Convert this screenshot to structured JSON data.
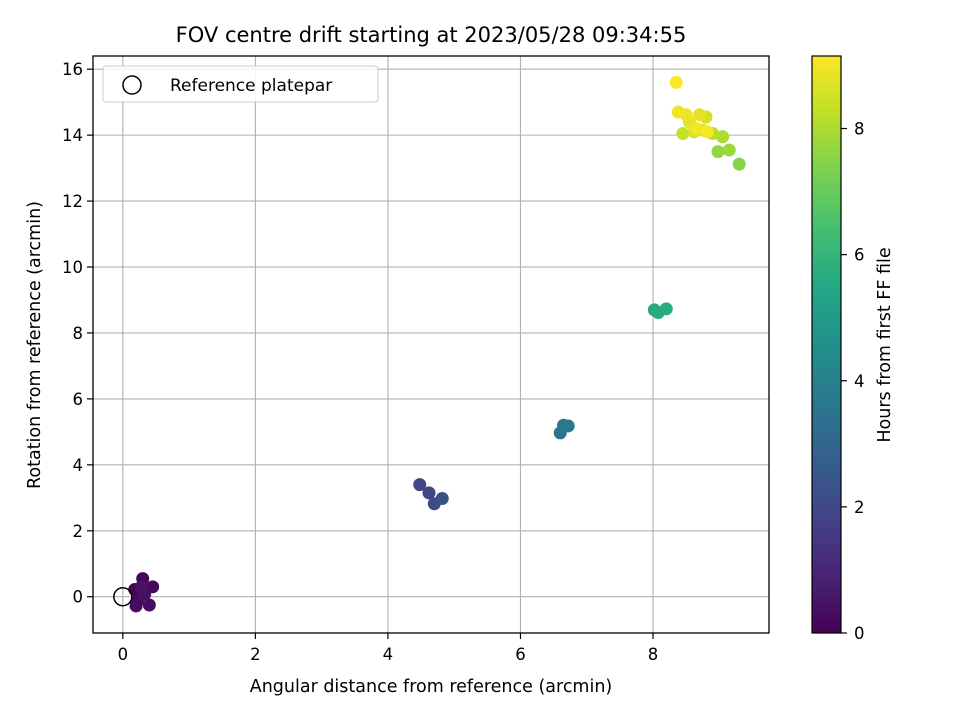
{
  "chart_data": {
    "type": "scatter",
    "title": "FOV centre drift starting at 2023/05/28 09:34:55",
    "xlabel": "Angular distance from reference (arcmin)",
    "ylabel": "Rotation from reference (arcmin)",
    "xlim": [
      -0.45,
      9.75
    ],
    "ylim": [
      -1.1,
      16.4
    ],
    "xticks": [
      0,
      2,
      4,
      6,
      8
    ],
    "yticks": [
      0,
      2,
      4,
      6,
      8,
      10,
      12,
      14,
      16
    ],
    "grid": true,
    "legend": {
      "position": "top-left",
      "entries": [
        {
          "label": "Reference platepar",
          "marker": "open-circle"
        }
      ]
    },
    "colormap": "viridis",
    "colorbar": {
      "label": "Hours from first FF file",
      "range": [
        0,
        9.15
      ],
      "ticks": [
        0,
        2,
        4,
        6,
        8
      ]
    },
    "reference_point": {
      "x": 0,
      "y": 0
    },
    "points": [
      {
        "x": 0.18,
        "y": 0.22,
        "c": 0.1
      },
      {
        "x": 0.3,
        "y": 0.55,
        "c": 0.15
      },
      {
        "x": 0.45,
        "y": 0.3,
        "c": 0.2
      },
      {
        "x": 0.22,
        "y": -0.12,
        "c": 0.25
      },
      {
        "x": 0.2,
        "y": -0.28,
        "c": 0.3
      },
      {
        "x": 0.4,
        "y": -0.25,
        "c": 0.35
      },
      {
        "x": 0.33,
        "y": 0.08,
        "c": 0.4
      },
      {
        "x": 0.28,
        "y": 0.3,
        "c": 0.45
      },
      {
        "x": 4.48,
        "y": 3.4,
        "c": 1.9
      },
      {
        "x": 4.62,
        "y": 3.15,
        "c": 2.0
      },
      {
        "x": 4.7,
        "y": 2.82,
        "c": 2.1
      },
      {
        "x": 4.82,
        "y": 2.98,
        "c": 2.2
      },
      {
        "x": 6.6,
        "y": 4.97,
        "c": 3.55
      },
      {
        "x": 6.65,
        "y": 5.2,
        "c": 3.6
      },
      {
        "x": 6.72,
        "y": 5.18,
        "c": 3.65
      },
      {
        "x": 8.02,
        "y": 8.7,
        "c": 5.55
      },
      {
        "x": 8.08,
        "y": 8.62,
        "c": 5.6
      },
      {
        "x": 8.2,
        "y": 8.73,
        "c": 5.65
      },
      {
        "x": 9.3,
        "y": 13.12,
        "c": 7.5
      },
      {
        "x": 8.98,
        "y": 13.5,
        "c": 7.65
      },
      {
        "x": 9.15,
        "y": 13.55,
        "c": 7.8
      },
      {
        "x": 9.05,
        "y": 13.95,
        "c": 8.0
      },
      {
        "x": 8.9,
        "y": 14.05,
        "c": 8.2
      },
      {
        "x": 8.45,
        "y": 14.05,
        "c": 8.35
      },
      {
        "x": 8.8,
        "y": 14.55,
        "c": 8.5
      },
      {
        "x": 8.62,
        "y": 14.1,
        "c": 8.6
      },
      {
        "x": 8.75,
        "y": 14.15,
        "c": 8.7
      },
      {
        "x": 8.55,
        "y": 14.4,
        "c": 8.8
      },
      {
        "x": 8.7,
        "y": 14.62,
        "c": 8.85
      },
      {
        "x": 8.5,
        "y": 14.62,
        "c": 8.9
      },
      {
        "x": 8.38,
        "y": 14.7,
        "c": 8.95
      },
      {
        "x": 8.65,
        "y": 14.2,
        "c": 9.0
      },
      {
        "x": 8.82,
        "y": 14.1,
        "c": 9.05
      },
      {
        "x": 8.35,
        "y": 15.6,
        "c": 9.1
      }
    ]
  }
}
